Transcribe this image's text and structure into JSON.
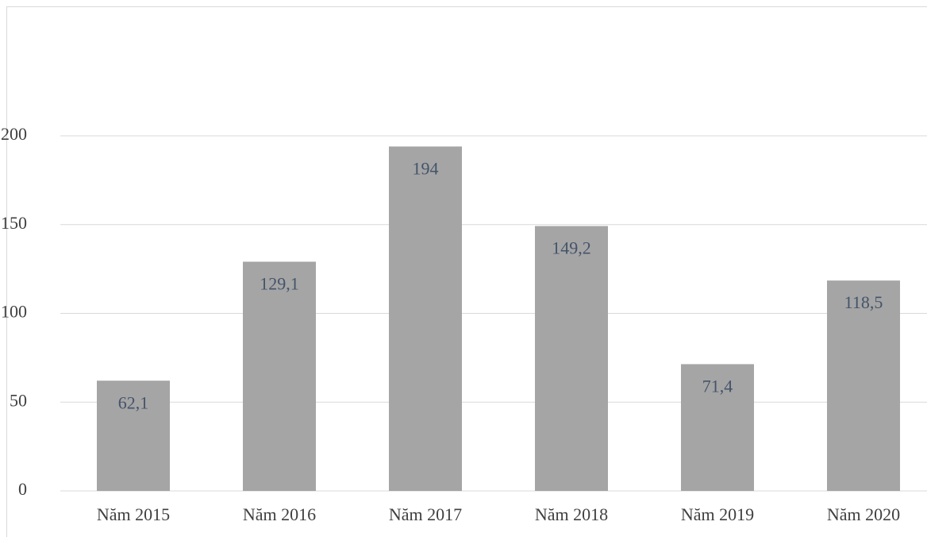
{
  "chart_data": {
    "type": "bar",
    "categories": [
      "Năm 2015",
      "Năm 2016",
      "Năm 2017",
      "Năm 2018",
      "Năm 2019",
      "Năm 2020"
    ],
    "values": [
      62.1,
      129.1,
      194,
      149.2,
      71.4,
      118.5
    ],
    "value_labels": [
      "62,1",
      "129,1",
      "194",
      "149,2",
      "71,4",
      "118,5"
    ],
    "color": "#a5a5a5",
    "ylim": [
      0,
      200
    ],
    "yticks": [
      0,
      50,
      100,
      150,
      200
    ],
    "grid": true
  }
}
